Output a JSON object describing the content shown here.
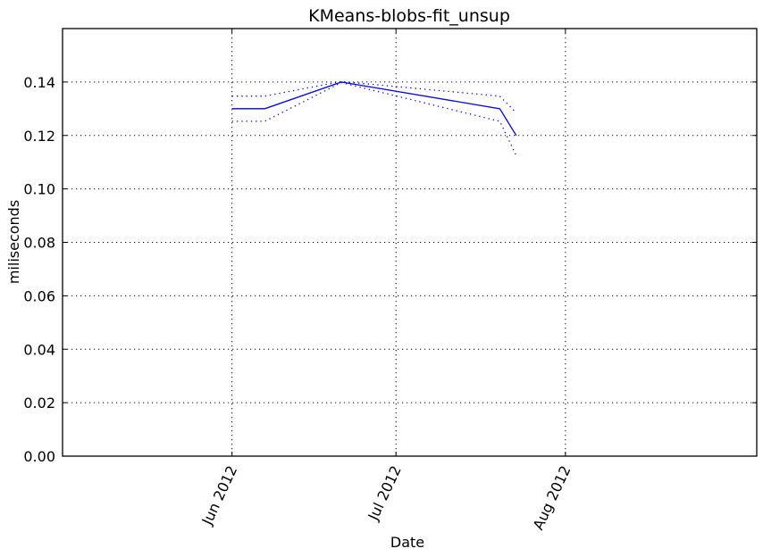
{
  "chart_data": {
    "type": "line",
    "title": "KMeans-blobs-fit_unsup",
    "xlabel": "Date",
    "ylabel": "miliseconds",
    "x_type": "date",
    "xlim": [
      "2012-05-01",
      "2012-09-05"
    ],
    "ylim": [
      0,
      0.16
    ],
    "yticks": [
      0.0,
      0.02,
      0.04,
      0.06,
      0.08,
      0.1,
      0.12,
      0.14
    ],
    "ytick_labels": [
      "0.00",
      "0.02",
      "0.04",
      "0.06",
      "0.08",
      "0.10",
      "0.12",
      "0.14"
    ],
    "xticks": [
      "2012-06-01",
      "2012-07-01",
      "2012-08-01"
    ],
    "xtick_labels": [
      "Jun 2012",
      "Jul 2012",
      "Aug 2012"
    ],
    "grid": true,
    "series": [
      {
        "role": "mean",
        "style": "solid",
        "color": "#0000ff",
        "x": [
          "2012-06-01",
          "2012-06-07",
          "2012-06-21",
          "2012-07-20",
          "2012-07-23"
        ],
        "y": [
          0.13,
          0.13,
          0.14,
          0.13,
          0.12
        ]
      },
      {
        "role": "upper",
        "style": "dotted",
        "color": "#0000ff",
        "x": [
          "2012-06-01",
          "2012-06-07",
          "2012-06-21",
          "2012-07-20",
          "2012-07-23"
        ],
        "y": [
          0.1347,
          0.1347,
          0.1402,
          0.1347,
          0.1285
        ]
      },
      {
        "role": "lower",
        "style": "dotted",
        "color": "#0000ff",
        "x": [
          "2012-06-01",
          "2012-06-07",
          "2012-06-21",
          "2012-07-20",
          "2012-07-23"
        ],
        "y": [
          0.1253,
          0.1253,
          0.1398,
          0.1253,
          0.1125
        ]
      }
    ]
  }
}
